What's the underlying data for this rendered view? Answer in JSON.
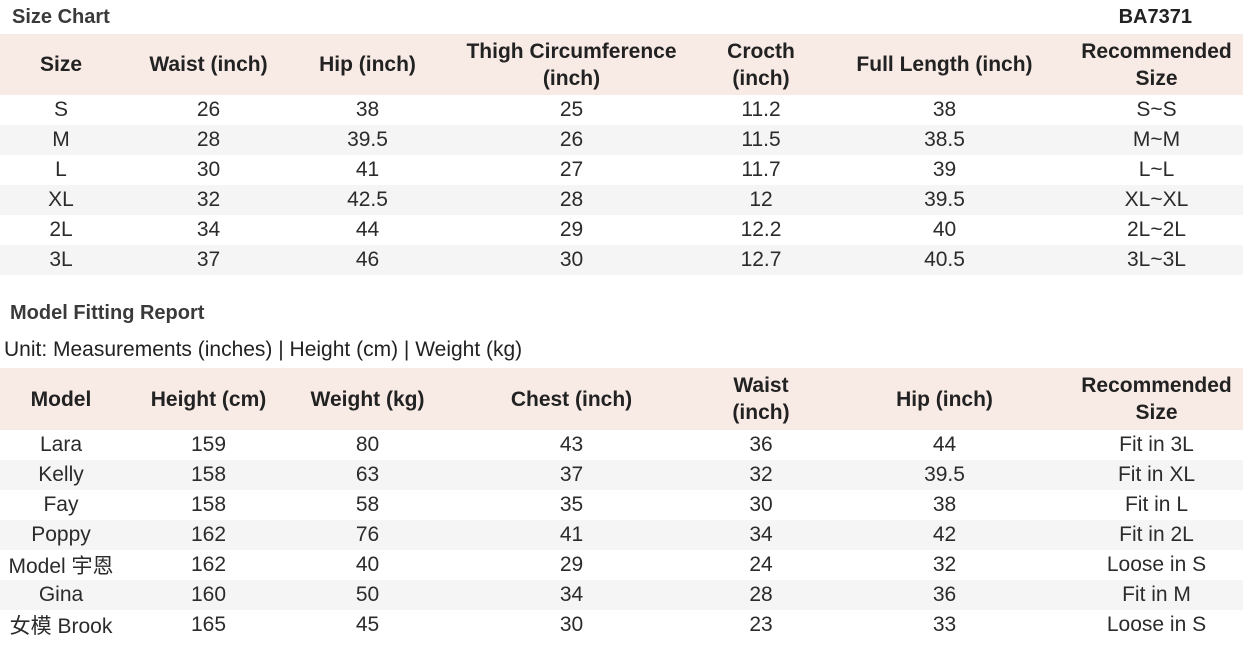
{
  "size_chart": {
    "title": "Size Chart",
    "code": "BA7371",
    "headers": [
      "Size",
      "Waist (inch)",
      "Hip (inch)",
      "Thigh Circumference (inch)",
      "Crocth (inch)",
      "Full Length (inch)",
      "Recommended Size"
    ],
    "rows": [
      [
        "S",
        "26",
        "38",
        "25",
        "11.2",
        "38",
        "S~S"
      ],
      [
        "M",
        "28",
        "39.5",
        "26",
        "11.5",
        "38.5",
        "M~M"
      ],
      [
        "L",
        "30",
        "41",
        "27",
        "11.7",
        "39",
        "L~L"
      ],
      [
        "XL",
        "32",
        "42.5",
        "28",
        "12",
        "39.5",
        "XL~XL"
      ],
      [
        "2L",
        "34",
        "44",
        "29",
        "12.2",
        "40",
        "2L~2L"
      ],
      [
        "3L",
        "37",
        "46",
        "30",
        "12.7",
        "40.5",
        "3L~3L"
      ]
    ]
  },
  "model_report": {
    "title": "Model Fitting Report",
    "unit_note": "Unit: Measurements (inches) | Height (cm) | Weight (kg)",
    "headers": [
      "Model",
      "Height (cm)",
      "Weight (kg)",
      "Chest (inch)",
      "Waist (inch)",
      "Hip (inch)",
      "Recommended Size"
    ],
    "rows": [
      [
        "Lara",
        "159",
        "80",
        "43",
        "36",
        "44",
        "Fit in 3L"
      ],
      [
        "Kelly",
        "158",
        "63",
        "37",
        "32",
        "39.5",
        "Fit in XL"
      ],
      [
        "Fay",
        "158",
        "58",
        "35",
        "30",
        "38",
        "Fit in L"
      ],
      [
        "Poppy",
        "162",
        "76",
        "41",
        "34",
        "42",
        "Fit in 2L"
      ],
      [
        "Model 宇恩",
        "162",
        "40",
        "29",
        "24",
        "32",
        "Loose in S"
      ],
      [
        "Gina",
        "160",
        "50",
        "34",
        "28",
        "36",
        "Fit in M"
      ],
      [
        "女模 Brook",
        "165",
        "45",
        "30",
        "23",
        "33",
        "Loose in S"
      ]
    ]
  }
}
